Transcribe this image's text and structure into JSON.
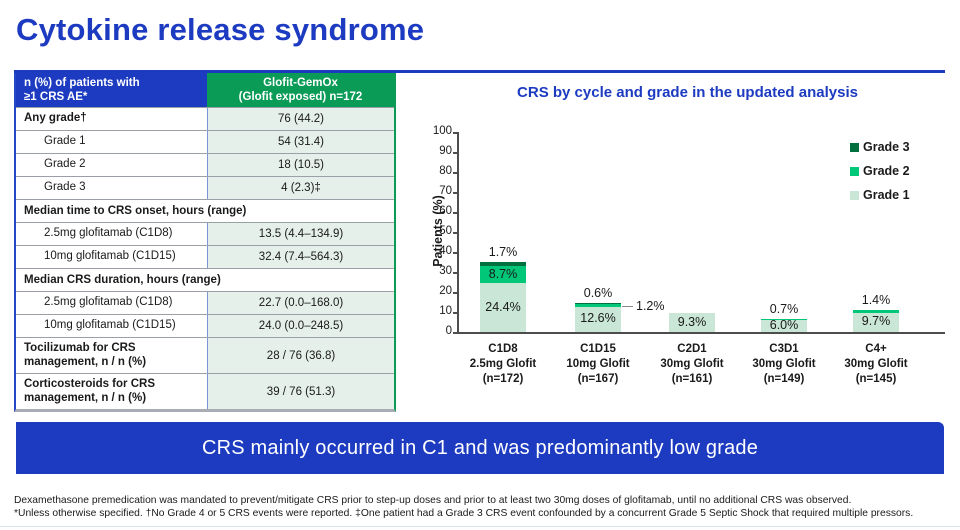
{
  "title": "Cytokine release syndrome",
  "colors": {
    "brand_blue": "#1d3bc1",
    "header_green": "#0a9b57",
    "value_cell_bg": "#e4f0e9",
    "grade3_green": "#00713e",
    "grade2_green": "#00c878",
    "grade1_green": "#c9e6d6"
  },
  "table": {
    "header": {
      "col1_lines": [
        "n (%) of patients with",
        "≥1 CRS AE*"
      ],
      "col2_lines": [
        "Glofit-GemOx",
        "(Glofit exposed) n=172"
      ]
    },
    "rows": [
      {
        "type": "data",
        "label": "Any grade†",
        "value": "76 (44.2)",
        "bold": true
      },
      {
        "type": "data",
        "label": "Grade 1",
        "value": "54 (31.4)",
        "indent": true
      },
      {
        "type": "data",
        "label": "Grade 2",
        "value": "18 (10.5)",
        "indent": true
      },
      {
        "type": "data",
        "label": "Grade 3",
        "value": "4 (2.3)‡",
        "indent": true
      },
      {
        "type": "section",
        "label": "Median time to CRS onset, hours (range)"
      },
      {
        "type": "data",
        "label": "2.5mg glofitamab (C1D8)",
        "value": "13.5 (4.4–134.9)",
        "indent": true
      },
      {
        "type": "data",
        "label": "10mg glofitamab (C1D15)",
        "value": "32.4 (7.4–564.3)",
        "indent": true
      },
      {
        "type": "section",
        "label": "Median CRS duration, hours (range)"
      },
      {
        "type": "data",
        "label": "2.5mg glofitamab (C1D8)",
        "value": "22.7 (0.0–168.0)",
        "indent": true
      },
      {
        "type": "data",
        "label": "10mg glofitamab (C1D15)",
        "value": "24.0 (0.0–248.5)",
        "indent": true
      },
      {
        "type": "data",
        "label": "Tocilizumab for CRS management, n / n (%)",
        "value": "28 / 76 (36.8)",
        "bold": true,
        "tall": true
      },
      {
        "type": "data",
        "label": "Corticosteroids for CRS management, n / n (%)",
        "value": "39 / 76 (51.3)",
        "bold": true,
        "tall": true
      }
    ]
  },
  "chart_data": {
    "type": "bar",
    "subtype": "stacked",
    "title": "CRS by cycle and grade in the updated analysis",
    "ylabel": "Patients (%)",
    "ylim": [
      0,
      100
    ],
    "ytick_step": 10,
    "grid": false,
    "legend_position": "top-right",
    "legend": [
      {
        "name": "Grade 3",
        "color": "#00713e"
      },
      {
        "name": "Grade 2",
        "color": "#00c878"
      },
      {
        "name": "Grade 1",
        "color": "#c9e6d6"
      }
    ],
    "groups": [
      {
        "label_lines": [
          "C1D8",
          "2.5mg Glofit",
          "(n=172)"
        ],
        "segments": [
          {
            "series": "Grade 1",
            "value": 24.4,
            "label": "24.4%",
            "label_placement": "inside"
          },
          {
            "series": "Grade 2",
            "value": 8.7,
            "label": "8.7%",
            "label_placement": "inside"
          },
          {
            "series": "Grade 3",
            "value": 1.7,
            "label": "1.7%",
            "label_placement": "above"
          }
        ]
      },
      {
        "label_lines": [
          "C1D15",
          "10mg Glofit",
          "(n=167)"
        ],
        "segments": [
          {
            "series": "Grade 1",
            "value": 12.6,
            "label": "12.6%",
            "label_placement": "inside"
          },
          {
            "series": "Grade 2",
            "value": 1.2,
            "label": "1.2%",
            "label_placement": "callout-right"
          },
          {
            "series": "Grade 3",
            "value": 0.6,
            "label": "0.6%",
            "label_placement": "above"
          }
        ]
      },
      {
        "label_lines": [
          "C2D1",
          "30mg Glofit",
          "(n=161)"
        ],
        "segments": [
          {
            "series": "Grade 1",
            "value": 9.3,
            "label": "9.3%",
            "label_placement": "inside"
          }
        ]
      },
      {
        "label_lines": [
          "C3D1",
          "30mg Glofit",
          "(n=149)"
        ],
        "segments": [
          {
            "series": "Grade 1",
            "value": 6.0,
            "label": "6.0%",
            "label_placement": "inside"
          },
          {
            "series": "Grade 2",
            "value": 0.7,
            "label": "0.7%",
            "label_placement": "above"
          }
        ]
      },
      {
        "label_lines": [
          "C4+",
          "30mg Glofit",
          "(n=145)"
        ],
        "segments": [
          {
            "series": "Grade 1",
            "value": 9.7,
            "label": "9.7%",
            "label_placement": "inside"
          },
          {
            "series": "Grade 2",
            "value": 1.4,
            "label": "1.4%",
            "label_placement": "above"
          }
        ]
      }
    ]
  },
  "banner": "CRS mainly occurred in C1 and was predominantly low grade",
  "footnotes": [
    "Dexamethasone premedication was mandated to prevent/mitigate CRS prior to step-up doses and prior to at least two 30mg doses of glofitamab, until no additional CRS was observed.",
    "*Unless otherwise specified. †No Grade 4 or 5 CRS events were reported. ‡One patient had a Grade 3 CRS event confounded by a concurrent Grade 5 Septic Shock that required multiple pressors."
  ]
}
